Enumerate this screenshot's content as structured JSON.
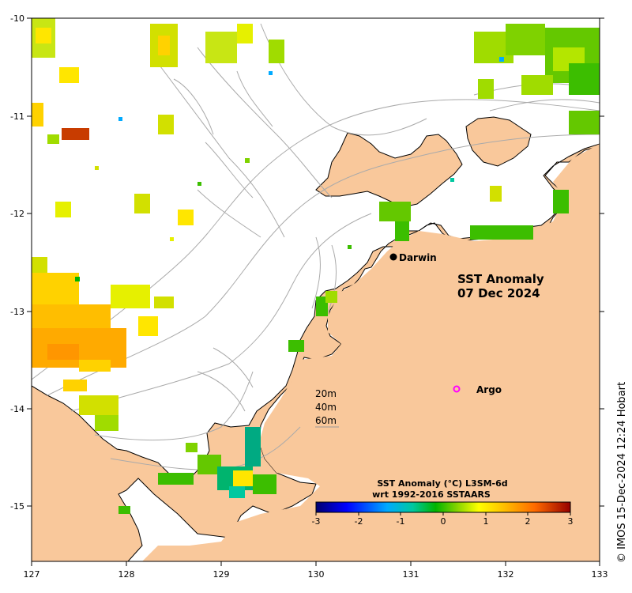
{
  "map": {
    "title_line1": "SST Anomaly",
    "title_line2": "07 Dec 2024",
    "x_ticks": [
      "127",
      "128",
      "129",
      "130",
      "131",
      "132",
      "133"
    ],
    "y_ticks": [
      "-10",
      "-11",
      "-12",
      "-13",
      "-14",
      "-15"
    ],
    "places": [
      {
        "name": "Darwin",
        "marker": "black-dot"
      },
      {
        "name": "Argo",
        "marker": "magenta-ring"
      }
    ],
    "depth_labels": [
      "20m",
      "40m",
      "60m"
    ],
    "colorbar": {
      "title_line1": "SST Anomaly (°C) L3SM-6d",
      "title_line2": "wrt 1992-2016 SSTAARS",
      "ticks": [
        "-3",
        "-2",
        "-1",
        "0",
        "1",
        "2",
        "3"
      ]
    },
    "credit": "© IMOS 15-Dec-2024 12:24 Hobart",
    "colors": {
      "land": "#f9c89b",
      "ocean": "#ffffff",
      "argo": "#ff00ff",
      "contour": "#aaaaaa"
    }
  }
}
